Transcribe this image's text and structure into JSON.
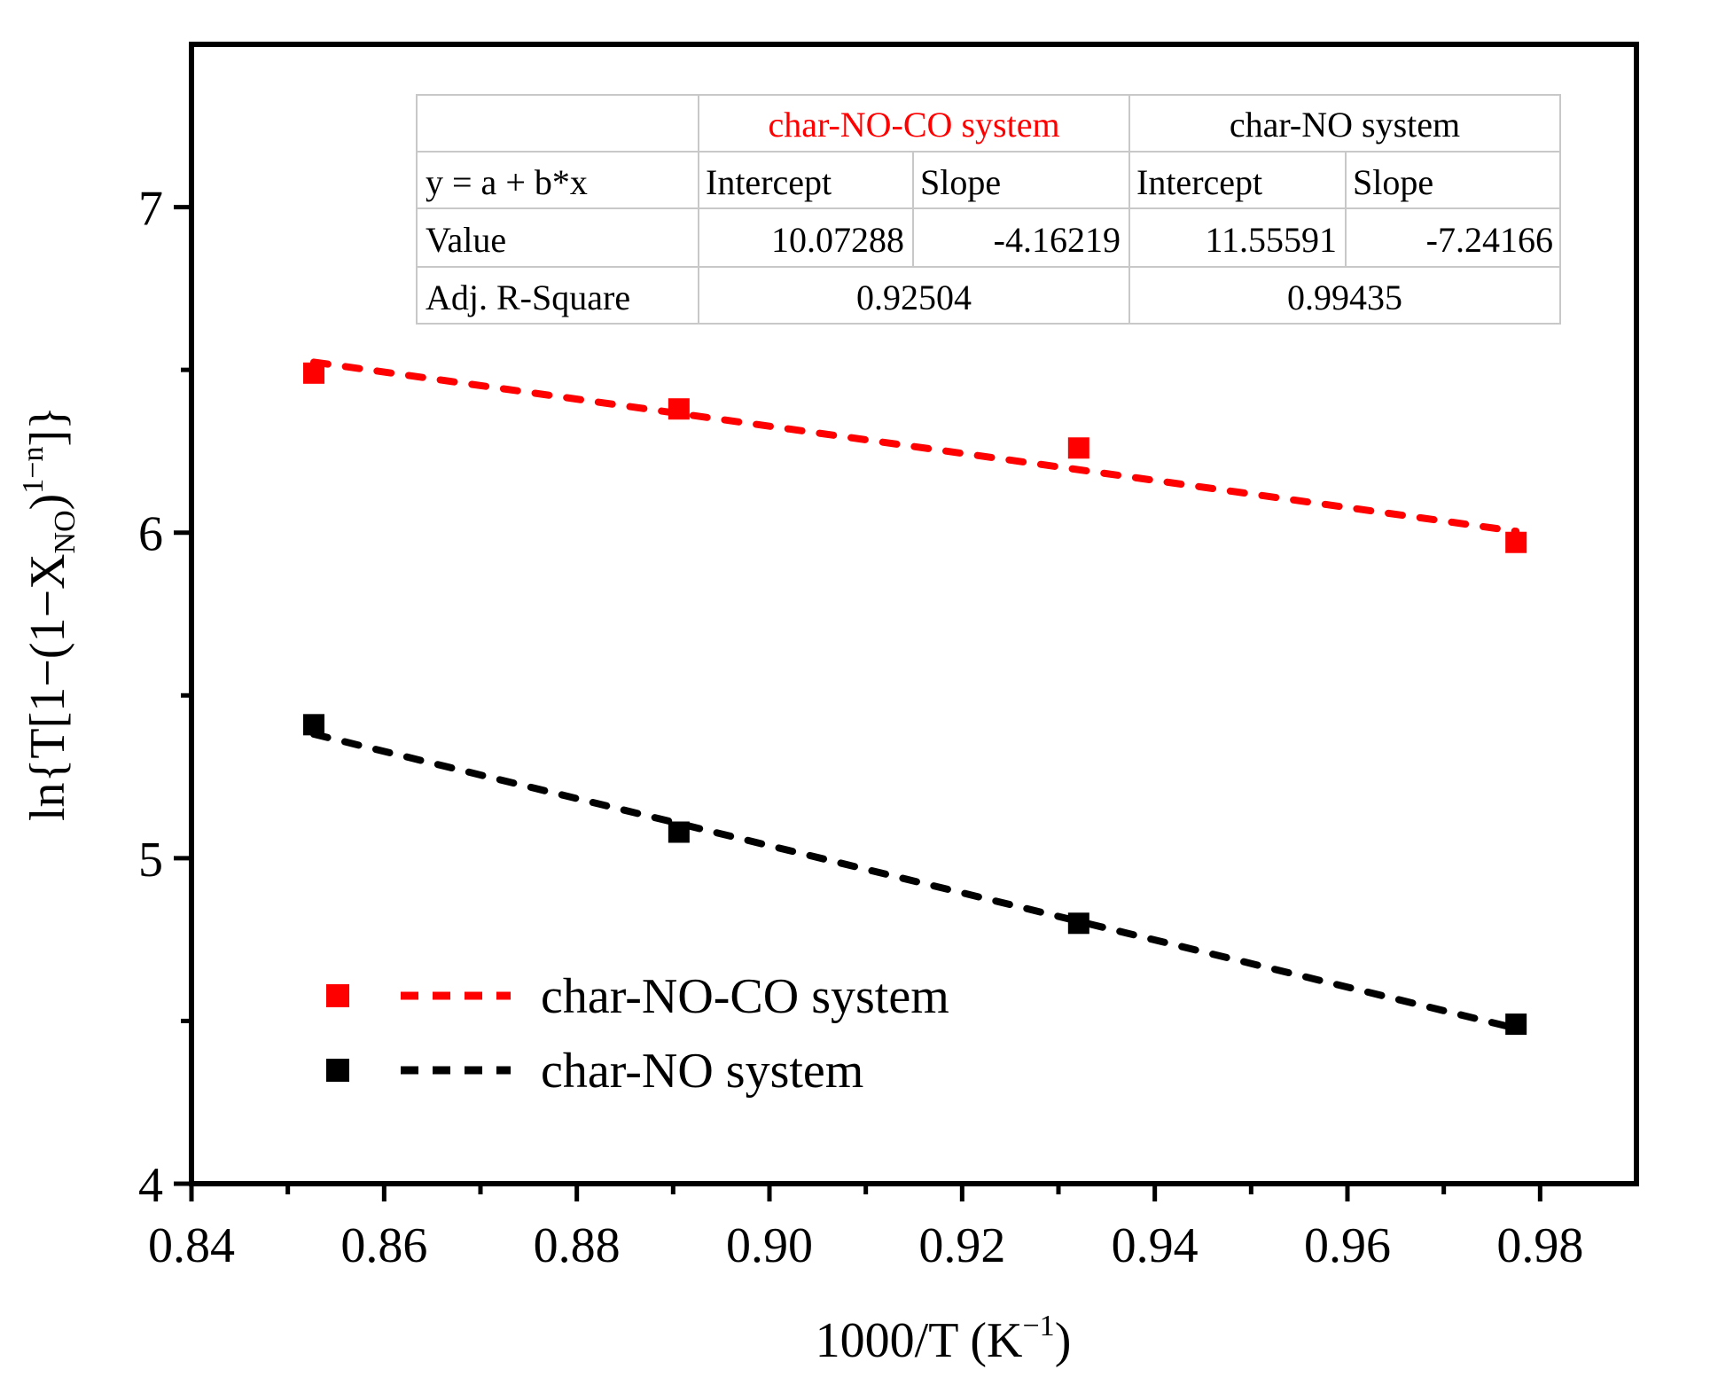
{
  "chart_data": {
    "type": "scatter",
    "xlabel": "1000/T (K",
    "xlabel_sup": "−1",
    "xlabel_tail": ")",
    "ylabel_parts": [
      "ln{T[1−(1−X",
      "NO",
      ")",
      "1−n",
      "]}"
    ],
    "xlim": [
      0.84,
      0.99
    ],
    "ylim": [
      4,
      7.5
    ],
    "x_ticks": [
      0.84,
      0.86,
      0.88,
      0.9,
      0.92,
      0.94,
      0.96,
      0.98
    ],
    "x_tick_labels": [
      "0.84",
      "0.86",
      "0.88",
      "0.90",
      "0.92",
      "0.94",
      "0.96",
      "0.98"
    ],
    "y_ticks": [
      4,
      5,
      6,
      7
    ],
    "y_tick_labels": [
      "4",
      "5",
      "6",
      "7"
    ],
    "series": [
      {
        "name": "char-NO-CO system",
        "color": "#ff0000",
        "marker": "square",
        "x": [
          0.8527,
          0.8906,
          0.9321,
          0.9775
        ],
        "y": [
          6.49,
          6.38,
          6.26,
          5.97
        ],
        "fit": {
          "intercept": 10.07288,
          "slope": -4.16219
        }
      },
      {
        "name": "char-NO system",
        "color": "#000000",
        "marker": "square",
        "x": [
          0.8527,
          0.8906,
          0.9321,
          0.9775
        ],
        "y": [
          5.41,
          5.08,
          4.8,
          4.49
        ],
        "fit": {
          "intercept": 11.55591,
          "slope": -7.24166
        }
      }
    ],
    "fit_table": {
      "header_series": [
        "char-NO-CO system",
        "char-NO system"
      ],
      "header_colors": [
        "#ff0000",
        "#000000"
      ],
      "row_equation": [
        "y = a + b*x",
        "Intercept",
        "Slope",
        "Intercept",
        "Slope"
      ],
      "row_value": [
        "Value",
        "10.07288",
        "-4.16219",
        "11.55591",
        "-7.24166"
      ],
      "row_r2": [
        "Adj. R-Square",
        "0.92504",
        "0.99435"
      ]
    },
    "legend": [
      {
        "label": "char-NO-CO system",
        "color": "#ff0000"
      },
      {
        "label": "char-NO system",
        "color": "#000000"
      }
    ]
  }
}
